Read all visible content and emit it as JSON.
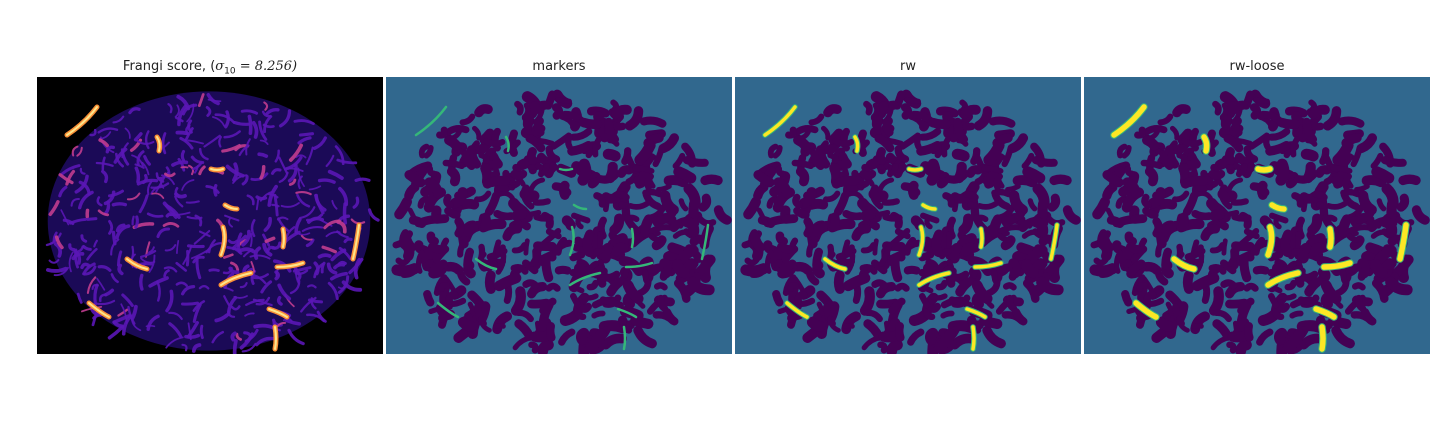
{
  "panels": [
    {
      "id": "frangi",
      "title_prefix": "Frangi score, (",
      "title_symbol": "σ",
      "title_sub": "10",
      "title_value": " = 8.256)"
    },
    {
      "id": "markers",
      "title": "markers"
    },
    {
      "id": "rw",
      "title": "rw"
    },
    {
      "id": "rw_loose",
      "title": "rw-loose"
    }
  ],
  "colors": {
    "frangi_background": "#000000",
    "frangi_tissue": "#1b0a57",
    "frangi_low": "#5a16b5",
    "frangi_mid": "#c13c8f",
    "frangi_high": "#f98e36",
    "frangi_peak": "#fde68a",
    "label_background": "#31688e",
    "label_tissue": "#440154",
    "label_marker": "#35b779",
    "label_rw": "#fde725"
  },
  "colormaps": [
    "plasma",
    "viridis"
  ]
}
